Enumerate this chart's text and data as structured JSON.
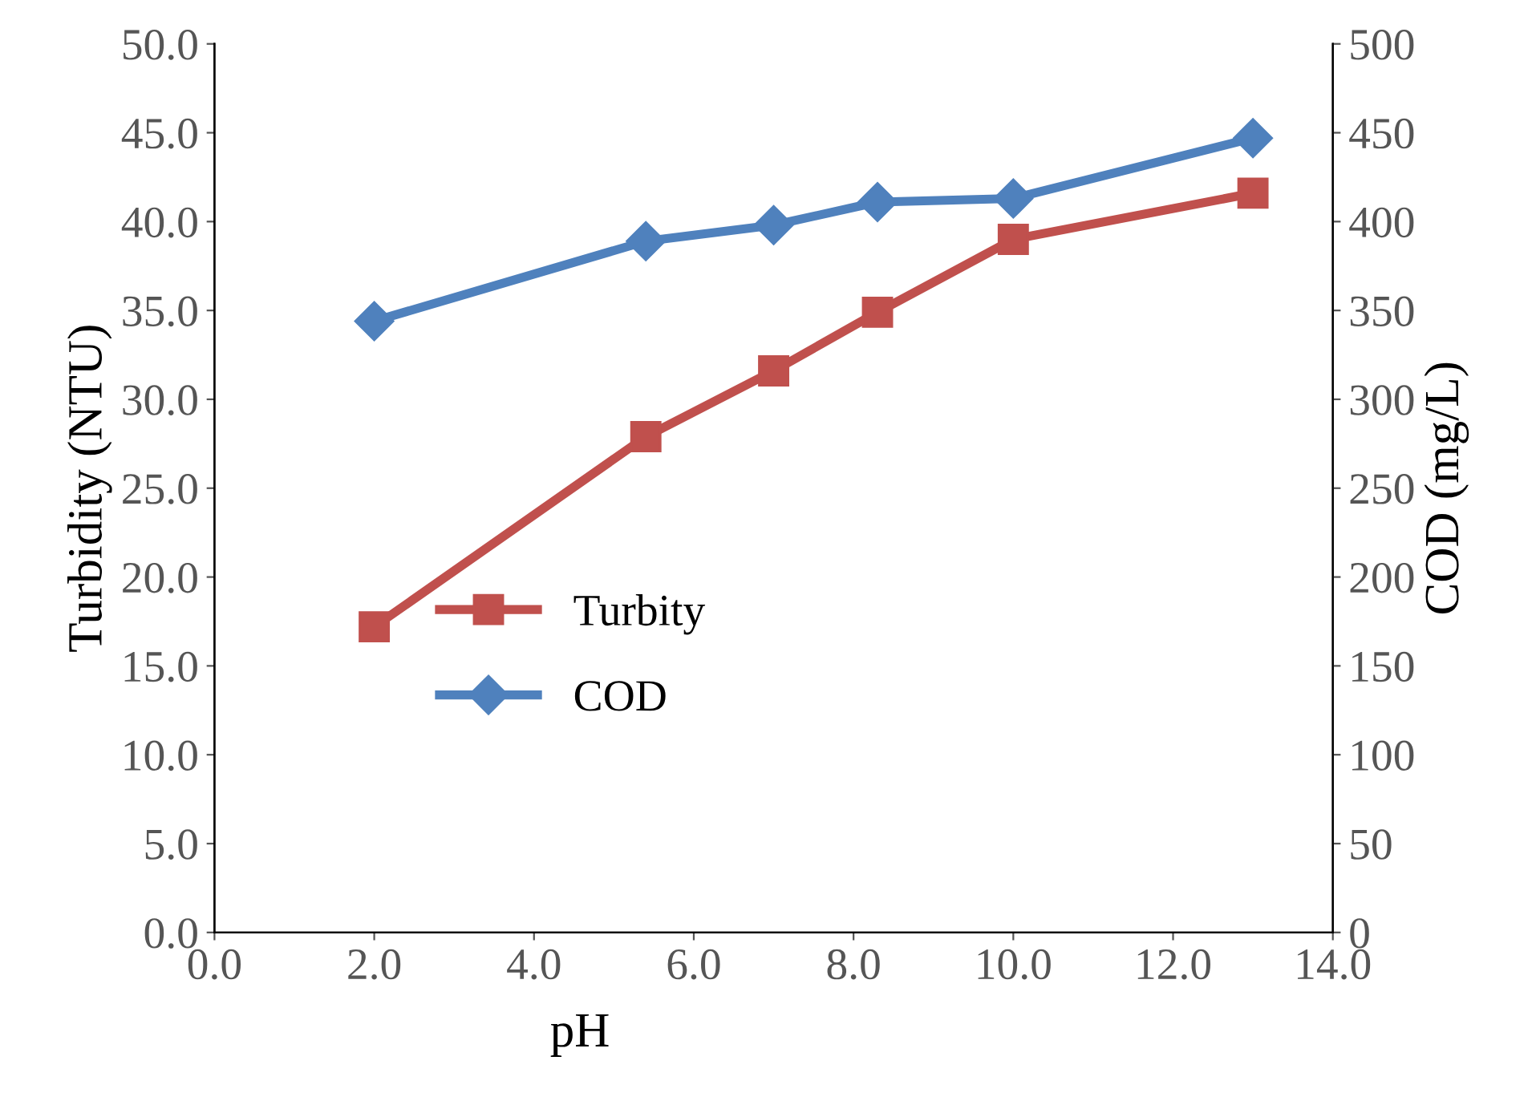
{
  "chart_data": {
    "type": "line",
    "xlabel": "pH",
    "ylabel": "Turbidity (NTU)",
    "y2label": "COD (mg/L)",
    "x": [
      2.0,
      5.4,
      7.0,
      8.3,
      10.0,
      13.0
    ],
    "series": [
      {
        "name": "Turbity",
        "color": "#c0504d",
        "marker": "square",
        "values": [
          17.2,
          27.9,
          31.6,
          34.9,
          39.0,
          41.6
        ]
      },
      {
        "name": "COD",
        "color": "#4f81bd",
        "marker": "diamond",
        "axis": "y2",
        "values": [
          344,
          389,
          398,
          411,
          413,
          447
        ]
      }
    ],
    "xlim": [
      0,
      14
    ],
    "xticks": [
      {
        "value": 0,
        "label": "0.0"
      },
      {
        "value": 2,
        "label": "2.0"
      },
      {
        "value": 4,
        "label": "4.0"
      },
      {
        "value": 6,
        "label": "6.0"
      },
      {
        "value": 8,
        "label": "8.0"
      },
      {
        "value": 10,
        "label": "10.0"
      },
      {
        "value": 12,
        "label": "12.0"
      },
      {
        "value": 14,
        "label": "14.0"
      }
    ],
    "ylim": [
      0,
      50
    ],
    "yticks": [
      {
        "value": 0,
        "label": "0.0"
      },
      {
        "value": 5,
        "label": "5.0"
      },
      {
        "value": 10,
        "label": "10.0"
      },
      {
        "value": 15,
        "label": "15.0"
      },
      {
        "value": 20,
        "label": "20.0"
      },
      {
        "value": 25,
        "label": "25.0"
      },
      {
        "value": 30,
        "label": "30.0"
      },
      {
        "value": 35,
        "label": "35.0"
      },
      {
        "value": 40,
        "label": "40.0"
      },
      {
        "value": 45,
        "label": "45.0"
      },
      {
        "value": 50,
        "label": "50.0"
      }
    ],
    "y2lim": [
      0,
      500
    ],
    "y2ticks": [
      0,
      50,
      100,
      150,
      200,
      250,
      300,
      350,
      400,
      450,
      500
    ],
    "legend": "center",
    "grid": false,
    "line_style": "solid"
  }
}
